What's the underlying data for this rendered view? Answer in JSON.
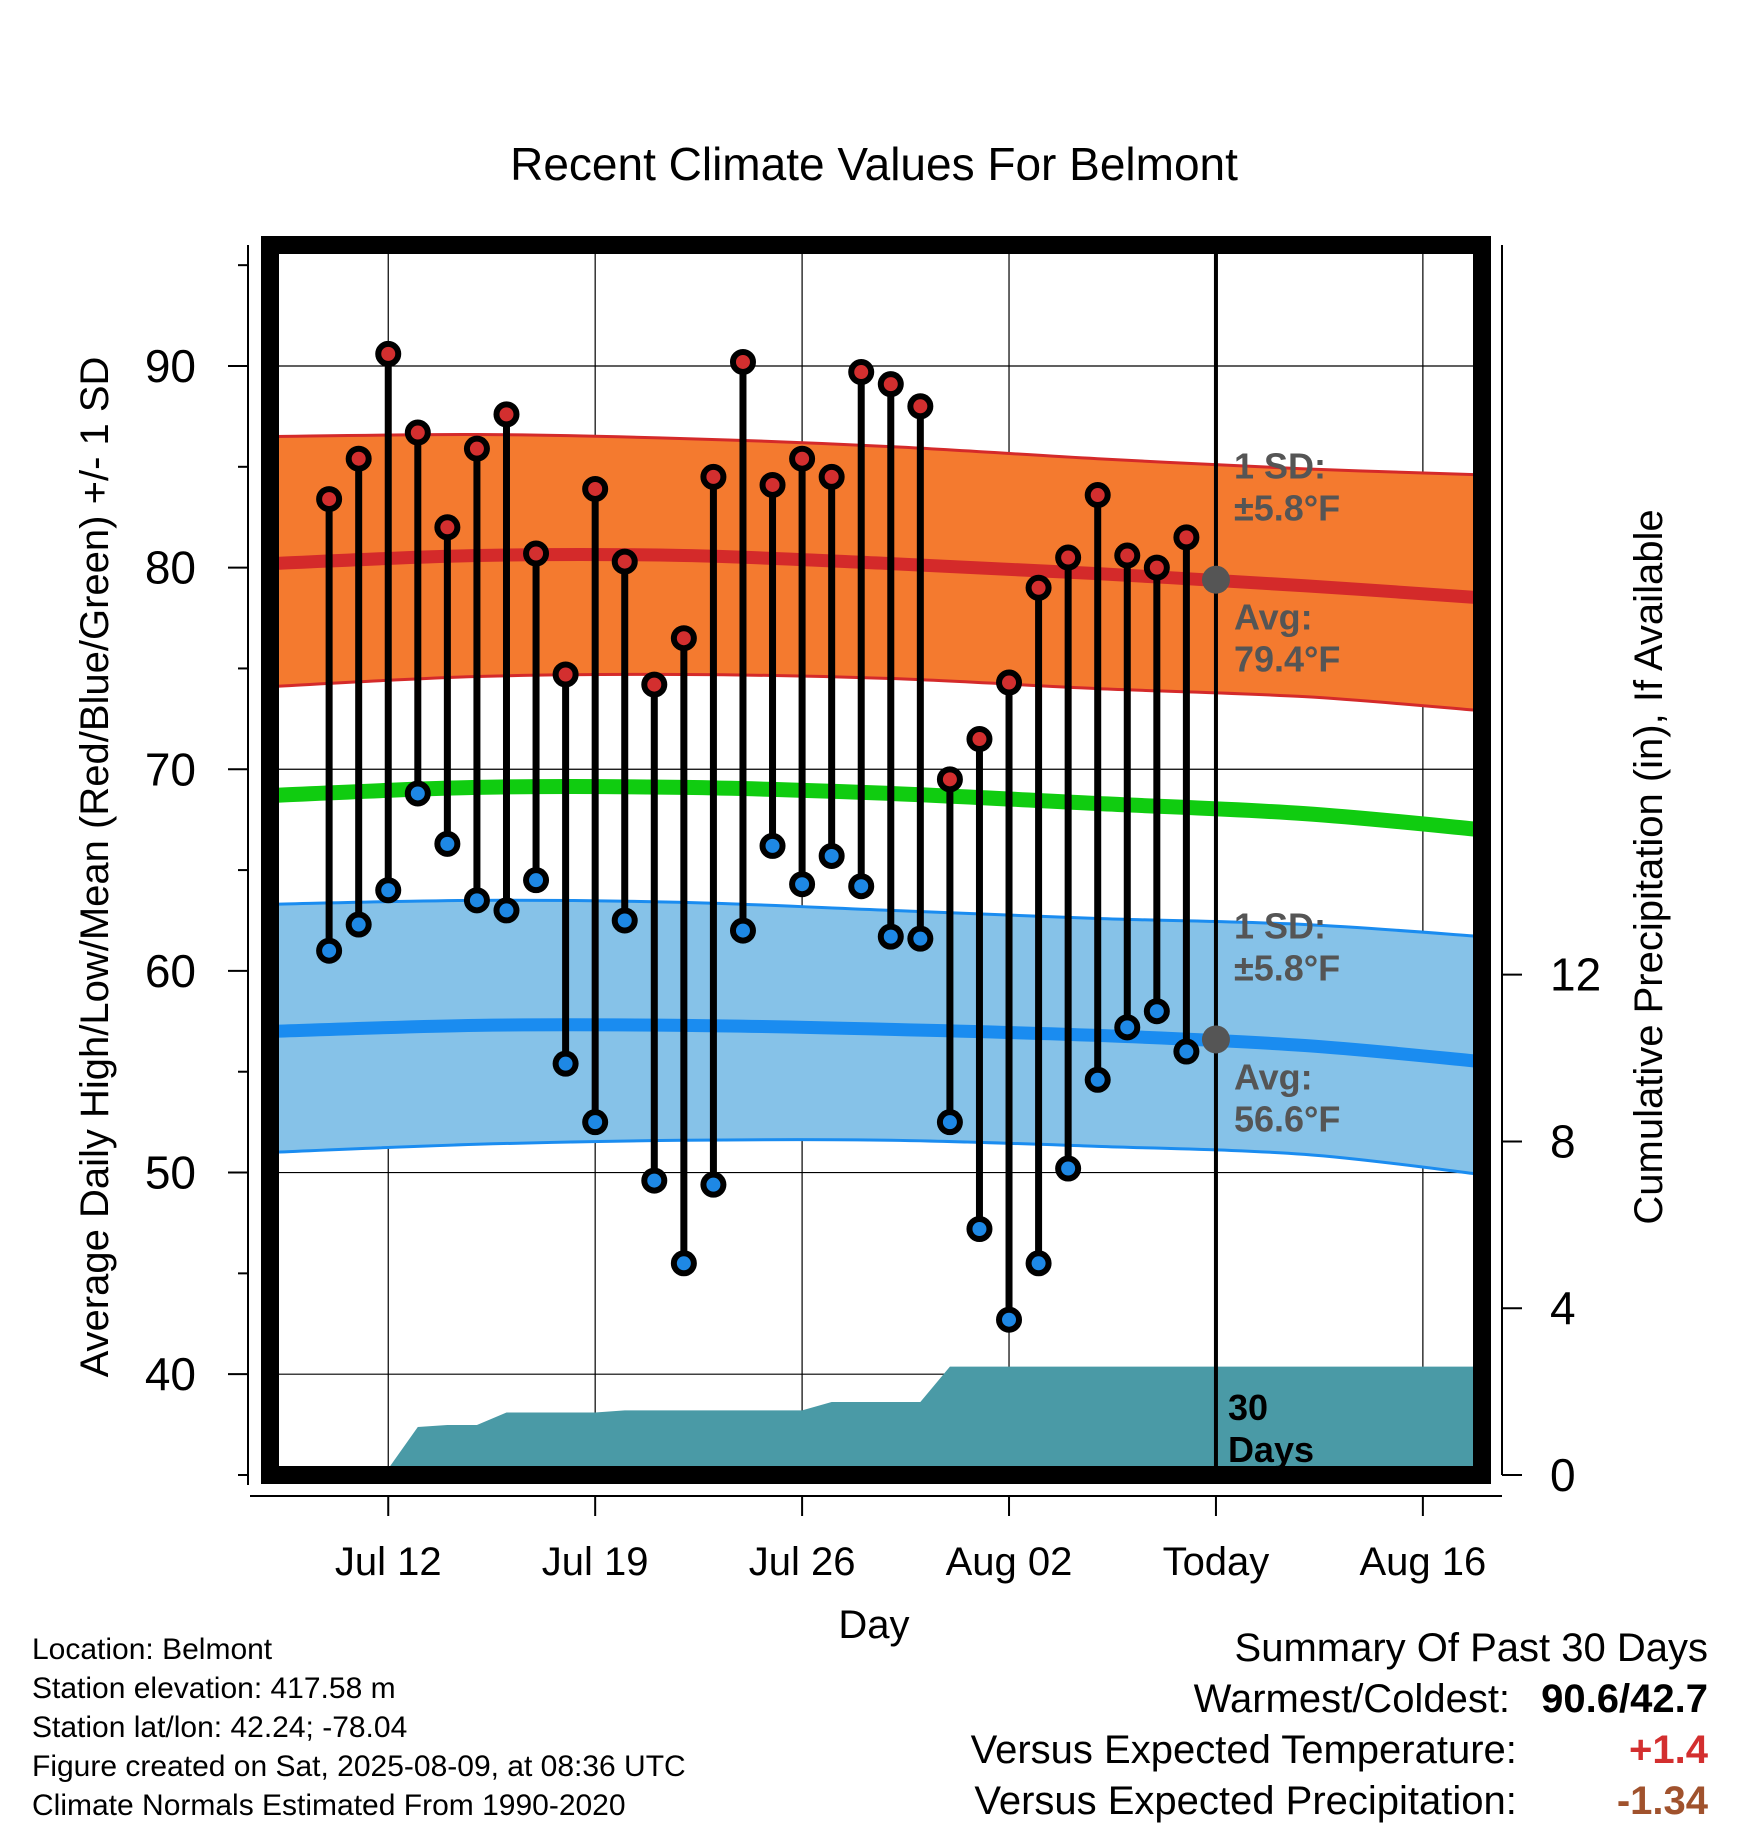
{
  "title": "Recent Climate Values For Belmont",
  "ylabel_left": "Average Daily High/Low/Mean (Red/Blue/Green) +/- 1 SD",
  "ylabel_right": "Cumulative Precipitation (in), If Available",
  "xlabel": "Day",
  "colors": {
    "high_band": "#f47a2f",
    "high_line": "#d42a2a",
    "low_band": "#86c2e8",
    "low_line": "#1a8cf0",
    "mean_line": "#10cc10",
    "precip": "#4a9aa6",
    "high_point": "#d32f2f",
    "low_point": "#1e88e5",
    "today_marker": "#555555",
    "pos_anomaly": "#d32f2f",
    "neg_anomaly": "#a0522d"
  },
  "annotations": {
    "high_sd": [
      "1 SD:",
      "±5.8°F"
    ],
    "high_avg": [
      "Avg:",
      "79.4°F"
    ],
    "low_sd": [
      "1 SD:",
      "±5.8°F"
    ],
    "low_avg": [
      "Avg:",
      "56.6°F"
    ],
    "days": [
      "30",
      "Days"
    ]
  },
  "footer": [
    "Location: Belmont",
    "Station elevation: 417.58 m",
    "Station lat/lon: 42.24; -78.04",
    "Figure created on Sat, 2025-08-09, at 08:36 UTC",
    "Climate Normals Estimated From 1990-2020"
  ],
  "summary": {
    "heading": "Summary Of Past 30 Days",
    "warmest_label": "Warmest/Coldest:",
    "warmest_value": "90.6/42.7",
    "temp_label": "Versus Expected Temperature:",
    "temp_value": "+1.4",
    "precip_label": "Versus Expected Precipitation:",
    "precip_value": "-1.34"
  },
  "chart_data": {
    "type": "line",
    "x_range": [
      "Jul 08",
      "Aug 18"
    ],
    "today": "Aug 09",
    "x_ticks": [
      {
        "date": "Jul 12",
        "label": "Jul 12"
      },
      {
        "date": "Jul 19",
        "label": "Jul 19"
      },
      {
        "date": "Jul 26",
        "label": "Jul 26"
      },
      {
        "date": "Aug 02",
        "label": "Aug 02"
      },
      {
        "date": "Aug 09",
        "label": "Today"
      },
      {
        "date": "Aug 16",
        "label": "Aug 16"
      }
    ],
    "ylim": [
      35,
      96
    ],
    "y_ticks": [
      40,
      50,
      60,
      70,
      80,
      90
    ],
    "precip_ylim": [
      0,
      29.5
    ],
    "precip_ticks": [
      0,
      4,
      8,
      12
    ],
    "grid": true,
    "daily": {
      "dates": [
        "Jul 10",
        "Jul 11",
        "Jul 12",
        "Jul 13",
        "Jul 14",
        "Jul 15",
        "Jul 16",
        "Jul 17",
        "Jul 18",
        "Jul 19",
        "Jul 20",
        "Jul 21",
        "Jul 22",
        "Jul 23",
        "Jul 24",
        "Jul 25",
        "Jul 26",
        "Jul 27",
        "Jul 28",
        "Jul 29",
        "Jul 30",
        "Jul 31",
        "Aug 01",
        "Aug 02",
        "Aug 03",
        "Aug 04",
        "Aug 05",
        "Aug 06",
        "Aug 07",
        "Aug 08"
      ],
      "high": [
        83.4,
        85.4,
        90.6,
        86.7,
        82.0,
        85.9,
        87.6,
        80.7,
        74.7,
        83.9,
        80.3,
        74.2,
        76.5,
        84.5,
        90.2,
        84.1,
        85.4,
        84.5,
        89.7,
        89.1,
        88.0,
        69.5,
        71.5,
        74.3,
        79.0,
        80.5,
        83.6,
        80.6,
        80.0,
        81.5
      ],
      "low": [
        61.0,
        62.3,
        64.0,
        68.8,
        66.3,
        63.5,
        63.0,
        64.5,
        55.4,
        52.5,
        62.5,
        49.6,
        45.5,
        49.4,
        62.0,
        66.2,
        64.3,
        65.7,
        64.2,
        61.7,
        61.6,
        52.5,
        47.2,
        42.7,
        45.5,
        50.2,
        54.6,
        57.2,
        58.0,
        56.0
      ]
    },
    "normals": {
      "dates": [
        "Jul 08",
        "Jul 15",
        "Jul 22",
        "Jul 29",
        "Aug 05",
        "Aug 12",
        "Aug 18"
      ],
      "high_mean": [
        80.2,
        80.6,
        80.6,
        80.2,
        79.7,
        79.1,
        78.5
      ],
      "high_upper": [
        86.5,
        86.6,
        86.4,
        86.0,
        85.4,
        84.9,
        84.6
      ],
      "high_lower": [
        74.1,
        74.6,
        74.7,
        74.5,
        74.0,
        73.6,
        72.9
      ],
      "mean": [
        68.7,
        69.1,
        69.1,
        68.8,
        68.3,
        67.8,
        67.0
      ],
      "low_mean": [
        57.0,
        57.3,
        57.3,
        57.1,
        56.8,
        56.3,
        55.5
      ],
      "low_upper": [
        63.3,
        63.5,
        63.4,
        63.0,
        62.6,
        62.3,
        61.7
      ],
      "low_lower": [
        51.0,
        51.4,
        51.6,
        51.6,
        51.3,
        50.9,
        49.9
      ]
    },
    "precip_cumulative": {
      "dates": [
        "Jul 08",
        "Jul 09",
        "Jul 10",
        "Jul 11",
        "Jul 12",
        "Jul 13",
        "Jul 14",
        "Jul 15",
        "Jul 16",
        "Jul 17",
        "Jul 18",
        "Jul 19",
        "Jul 20",
        "Jul 21",
        "Jul 22",
        "Jul 23",
        "Jul 24",
        "Jul 25",
        "Jul 26",
        "Jul 27",
        "Jul 28",
        "Jul 29",
        "Jul 30",
        "Jul 31",
        "Aug 01",
        "Aug 02",
        "Aug 18"
      ],
      "values": [
        0,
        0,
        0.1,
        0.1,
        0.15,
        1.15,
        1.2,
        1.2,
        1.5,
        1.5,
        1.5,
        1.5,
        1.55,
        1.55,
        1.55,
        1.55,
        1.55,
        1.55,
        1.55,
        1.75,
        1.75,
        1.75,
        1.75,
        2.6,
        2.6,
        2.6,
        2.6
      ]
    }
  }
}
